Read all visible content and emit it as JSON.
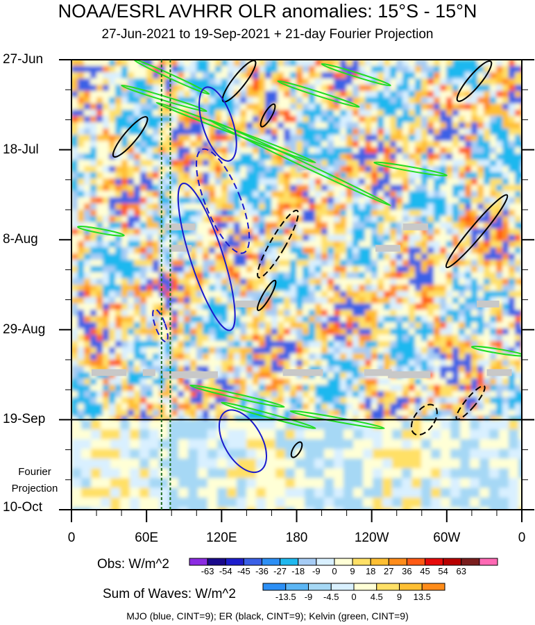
{
  "title": "NOAA/ESRL AVHRR OLR anomalies: 15°S - 15°N",
  "subtitle": "27-Jun-2021 to 19-Sep-2021 + 21-day Fourier Projection",
  "fourier_label_line1": "Fourier",
  "fourier_label_line2": "Projection",
  "chart_data": {
    "type": "heatmap",
    "description_kind": "Hovmoller time-longitude",
    "time_ticks": [
      {
        "label": "27-Jun",
        "day": 0
      },
      {
        "label": "18-Jul",
        "day": 21
      },
      {
        "label": "8-Aug",
        "day": 42
      },
      {
        "label": "29-Aug",
        "day": 63
      },
      {
        "label": "19-Sep",
        "day": 84
      },
      {
        "label": "10-Oct",
        "day": 105
      }
    ],
    "time_range_days": [
      0,
      105
    ],
    "observed_end_day": 84,
    "lon_ticks": [
      {
        "label": "0",
        "lon": 0
      },
      {
        "label": "60E",
        "lon": 60
      },
      {
        "label": "120E",
        "lon": 120
      },
      {
        "label": "180",
        "lon": 180
      },
      {
        "label": "120W",
        "lon": 240
      },
      {
        "label": "60W",
        "lon": 300
      },
      {
        "label": "0",
        "lon": 360
      }
    ],
    "lon_range": [
      0,
      360
    ],
    "reference_lines_lon": [
      72,
      79
    ],
    "obs_colorbar": {
      "title": "Obs: W/m^2",
      "levels": [
        "-63",
        "-54",
        "-45",
        "-36",
        "-27",
        "-18",
        "-9",
        "0",
        "9",
        "18",
        "27",
        "36",
        "45",
        "54",
        "63"
      ],
      "colors": [
        "#8b2be2",
        "#1a0a8c",
        "#1e1ecc",
        "#3a60e6",
        "#2c8ff5",
        "#1fb8ef",
        "#a6ccf5",
        "#d9f0ff",
        "#ffffd6",
        "#ffe066",
        "#ffbf33",
        "#ff8c1a",
        "#ff5a14",
        "#e60a0a",
        "#b80000",
        "#7a1e1e",
        "#ff69b4"
      ]
    },
    "waves_colorbar": {
      "title": "Sum of Waves: W/m^2",
      "levels": [
        "-13.5",
        "-9",
        "-4.5",
        "0",
        "4.5",
        "9",
        "13.5"
      ],
      "colors": [
        "#2c8ff5",
        "#5cb6f5",
        "#a6d8f5",
        "#d9f0ff",
        "#ffffd6",
        "#ffe066",
        "#ffbf33",
        "#ff8c1a"
      ]
    },
    "contour_legend": "MJO (blue, CINT=9); ER (black, CINT=9); Kelvin (green, CINT=9)",
    "contours": {
      "mjo_color": "#1a1acc",
      "er_color": "#000000",
      "kelvin_color": "#22dd22",
      "mjo": [
        {
          "lon": 117,
          "day": 15,
          "rlon": 12,
          "rday": 9,
          "angle": -18,
          "dashed": false
        },
        {
          "lon": 108,
          "day": 46,
          "rlon": 13,
          "rday": 18,
          "angle": -18,
          "dashed": false
        },
        {
          "lon": 121,
          "day": 33,
          "rlon": 14,
          "rday": 13,
          "angle": -22,
          "dashed": true
        },
        {
          "lon": 71,
          "day": 62,
          "rlon": 4,
          "rday": 4,
          "angle": -20,
          "dashed": true
        },
        {
          "lon": 137,
          "day": 89,
          "rlon": 15,
          "rday": 8,
          "angle": -30,
          "dashed": false
        }
      ],
      "er": [
        {
          "lon": 47,
          "day": 18,
          "rlon": 5,
          "rday": 6,
          "angle": 40,
          "dashed": false
        },
        {
          "lon": 134,
          "day": 5,
          "rlon": 5,
          "rday": 6,
          "angle": 38,
          "dashed": false
        },
        {
          "lon": 157,
          "day": 13,
          "rlon": 3,
          "rday": 3,
          "angle": 30,
          "dashed": false
        },
        {
          "lon": 165,
          "day": 43,
          "rlon": 6,
          "rday": 9,
          "angle": 30,
          "dashed": true
        },
        {
          "lon": 156,
          "day": 55,
          "rlon": 3,
          "rday": 4,
          "angle": 30,
          "dashed": false
        },
        {
          "lon": 322,
          "day": 5,
          "rlon": 5,
          "rday": 6,
          "angle": 40,
          "dashed": false
        },
        {
          "lon": 324,
          "day": 40,
          "rlon": 5,
          "rday": 11,
          "angle": 40,
          "dashed": false
        },
        {
          "lon": 319,
          "day": 80,
          "rlon": 4,
          "rday": 5,
          "angle": 40,
          "dashed": true
        },
        {
          "lon": 282,
          "day": 84,
          "rlon": 8,
          "rday": 4,
          "angle": 35,
          "dashed": true
        },
        {
          "lon": 180,
          "day": 91,
          "rlon": 3,
          "rday": 2,
          "angle": 30,
          "dashed": false
        }
      ],
      "kelvin": [
        {
          "lon1": 50,
          "day1": 0,
          "lon2": 110,
          "day2": 8
        },
        {
          "lon1": 40,
          "day1": 6,
          "lon2": 108,
          "day2": 12
        },
        {
          "lon1": 68,
          "day1": 10,
          "lon2": 195,
          "day2": 24
        },
        {
          "lon1": 110,
          "day1": 14,
          "lon2": 255,
          "day2": 34
        },
        {
          "lon1": 200,
          "day1": 1,
          "lon2": 255,
          "day2": 6
        },
        {
          "lon1": 165,
          "day1": 5,
          "lon2": 230,
          "day2": 11
        },
        {
          "lon1": 242,
          "day1": 24,
          "lon2": 300,
          "day2": 27
        },
        {
          "lon1": 5,
          "day1": 39,
          "lon2": 42,
          "day2": 41
        },
        {
          "lon1": 95,
          "day1": 76,
          "lon2": 170,
          "day2": 81
        },
        {
          "lon1": 120,
          "day1": 80,
          "lon2": 195,
          "day2": 86
        },
        {
          "lon1": 175,
          "day1": 82,
          "lon2": 250,
          "day2": 86
        },
        {
          "lon1": 320,
          "day1": 67,
          "lon2": 362,
          "day2": 69
        }
      ]
    },
    "missing_data_patches": [
      {
        "lon": 30,
        "day": 73,
        "wlon": 28,
        "hday": 1.6
      },
      {
        "lon": 95,
        "day": 73.5,
        "wlon": 44,
        "hday": 1.6
      },
      {
        "lon": 62,
        "day": 73,
        "wlon": 10,
        "hday": 1.6
      },
      {
        "lon": 185,
        "day": 73,
        "wlon": 32,
        "hday": 1.6
      },
      {
        "lon": 245,
        "day": 73,
        "wlon": 22,
        "hday": 1.6
      },
      {
        "lon": 270,
        "day": 73.5,
        "wlon": 34,
        "hday": 1.6
      },
      {
        "lon": 342,
        "day": 73,
        "wlon": 20,
        "hday": 1.6
      },
      {
        "lon": 190,
        "day": 25,
        "wlon": 18,
        "hday": 1.6
      },
      {
        "lon": 87,
        "day": 39,
        "wlon": 24,
        "hday": 1.6
      },
      {
        "lon": 87,
        "day": 44,
        "wlon": 18,
        "hday": 1.6
      },
      {
        "lon": 275,
        "day": 39,
        "wlon": 20,
        "hday": 1.6
      },
      {
        "lon": 253,
        "day": 44,
        "wlon": 20,
        "hday": 1.6
      },
      {
        "lon": 140,
        "day": 57,
        "wlon": 18,
        "hday": 1.6
      },
      {
        "lon": 333,
        "day": 57,
        "wlon": 18,
        "hday": 1.6
      }
    ]
  }
}
